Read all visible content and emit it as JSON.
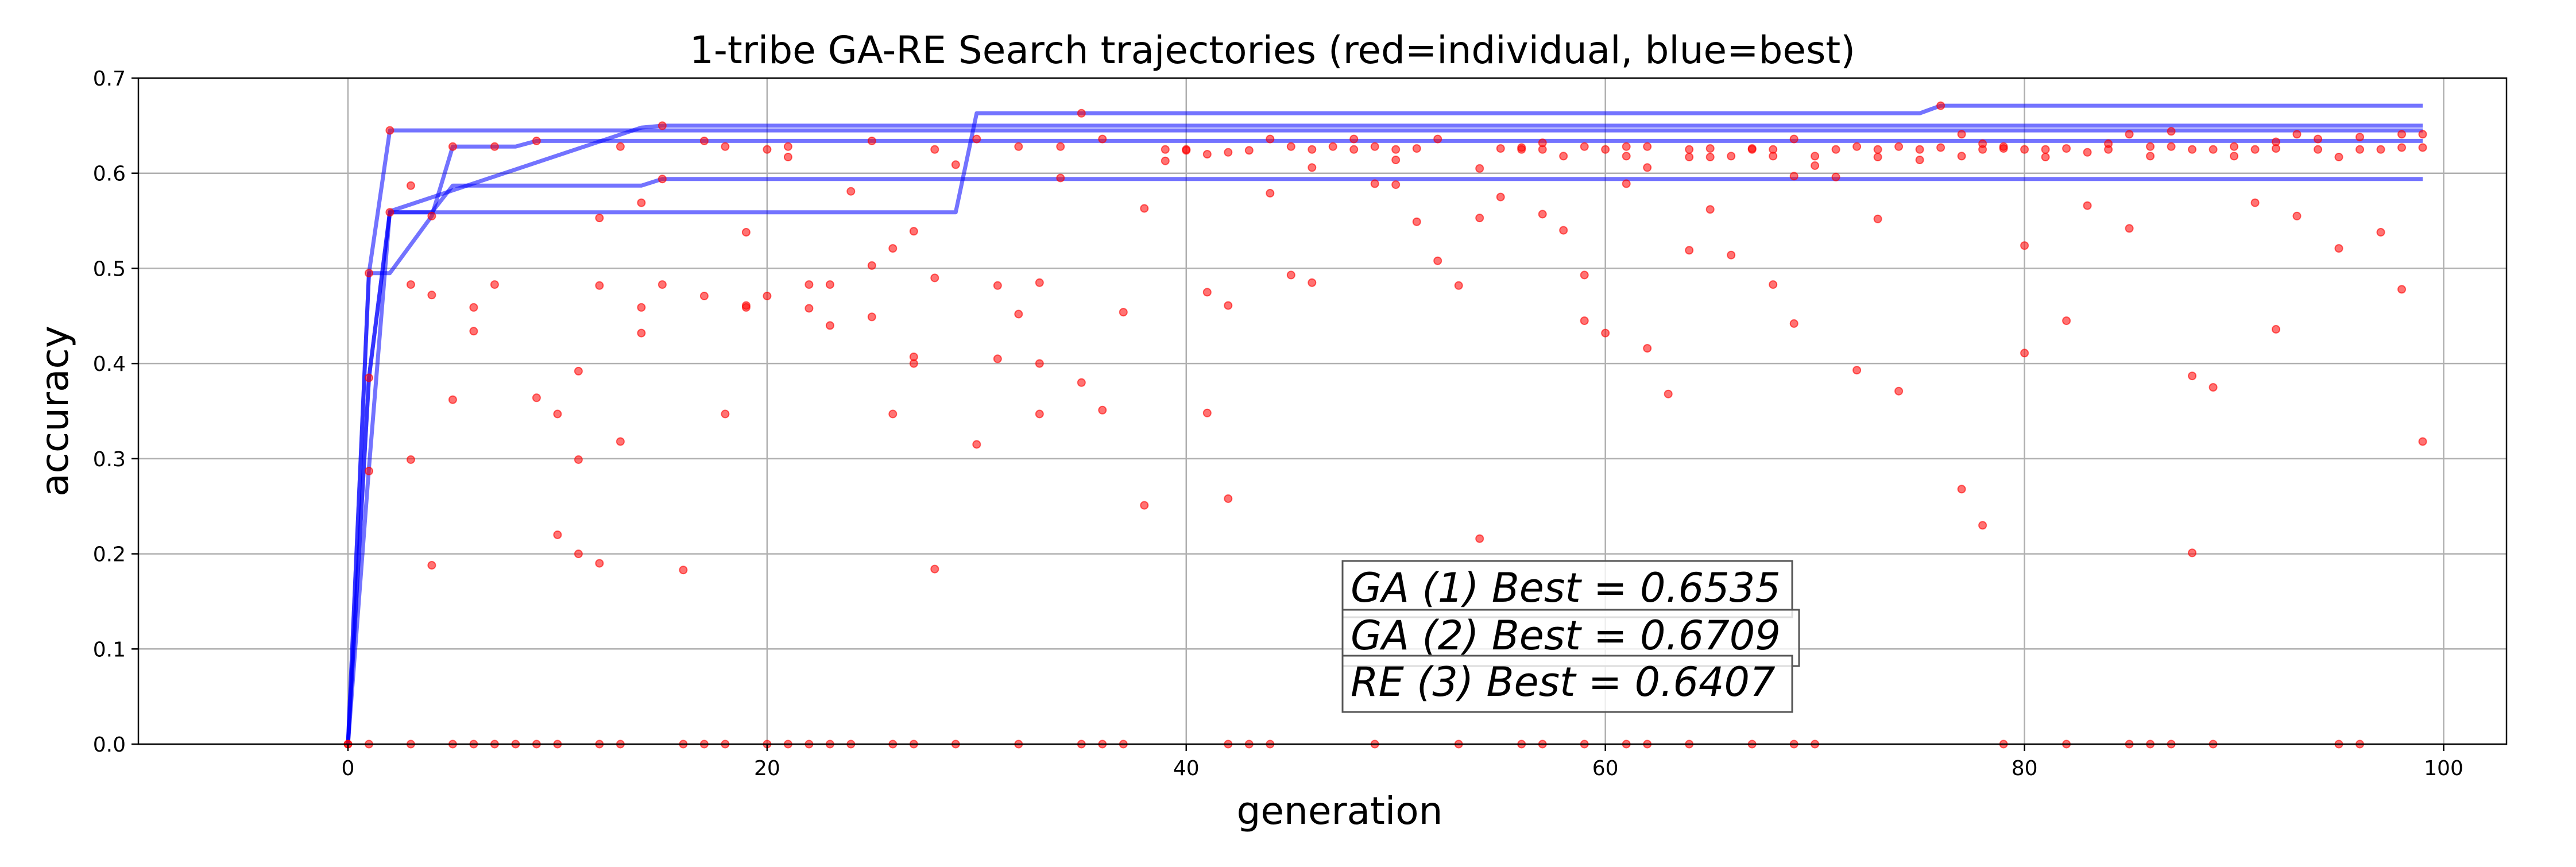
{
  "chart_data": {
    "type": "scatter",
    "title": "1-tribe GA-RE Search trajectories (red=individual, blue=best)",
    "xlabel": "generation",
    "ylabel": "accuracy",
    "xlim": [
      -10,
      103
    ],
    "ylim": [
      0,
      0.7
    ],
    "xticks": [
      0,
      20,
      40,
      60,
      80,
      100
    ],
    "yticks": [
      0.0,
      0.1,
      0.2,
      0.3,
      0.4,
      0.5,
      0.6,
      0.7
    ],
    "grid": true,
    "colors": {
      "individual": "#ff0000",
      "best": "#0000ff"
    },
    "annotations": [
      "GA (1) Best = 0.6535",
      "GA (2) Best = 0.6709",
      "RE (3) Best = 0.6407"
    ],
    "best_trajectories": [
      {
        "x": [
          0,
          1,
          2,
          99
        ],
        "y": [
          0.0,
          0.495,
          0.645,
          0.645
        ]
      },
      {
        "x": [
          0,
          1,
          2,
          29,
          30,
          75,
          76,
          99
        ],
        "y": [
          0.0,
          0.385,
          0.559,
          0.559,
          0.663,
          0.663,
          0.671,
          0.671
        ]
      },
      {
        "x": [
          0,
          1,
          2,
          4,
          5,
          8,
          9,
          99
        ],
        "y": [
          0.0,
          0.495,
          0.495,
          0.555,
          0.628,
          0.628,
          0.634,
          0.634
        ]
      },
      {
        "x": [
          0,
          1,
          2,
          3,
          4,
          5,
          14,
          15,
          99
        ],
        "y": [
          0.0,
          0.385,
          0.559,
          0.559,
          0.559,
          0.587,
          0.587,
          0.594,
          0.594
        ]
      },
      {
        "x": [
          0,
          1,
          2,
          14,
          15,
          30,
          99
        ],
        "y": [
          0.0,
          0.29,
          0.56,
          0.648,
          0.65,
          0.65,
          0.65
        ]
      }
    ],
    "individuals": [
      [
        0,
        0
      ],
      [
        1,
        0.495
      ],
      [
        1,
        0.385
      ],
      [
        1,
        0.287
      ],
      [
        2,
        0.645
      ],
      [
        2,
        0.559
      ],
      [
        3,
        0.587
      ],
      [
        3,
        0.483
      ],
      [
        3,
        0.299
      ],
      [
        4,
        0.555
      ],
      [
        4,
        0.472
      ],
      [
        4,
        0.188
      ],
      [
        5,
        0.628
      ],
      [
        5,
        0.362
      ],
      [
        6,
        0.459
      ],
      [
        6,
        0.434
      ],
      [
        7,
        0.628
      ],
      [
        7,
        0.483
      ],
      [
        9,
        0.634
      ],
      [
        9,
        0.364
      ],
      [
        10,
        0.347
      ],
      [
        10,
        0.22
      ],
      [
        11,
        0.392
      ],
      [
        11,
        0.299
      ],
      [
        11,
        0.2
      ],
      [
        12,
        0.553
      ],
      [
        12,
        0.482
      ],
      [
        12,
        0.19
      ],
      [
        13,
        0.628
      ],
      [
        13,
        0.318
      ],
      [
        14,
        0.569
      ],
      [
        14,
        0.459
      ],
      [
        14,
        0.432
      ],
      [
        15,
        0.65
      ],
      [
        15,
        0.594
      ],
      [
        15,
        0.483
      ],
      [
        16,
        0.183
      ],
      [
        17,
        0.634
      ],
      [
        17,
        0.471
      ],
      [
        18,
        0.628
      ],
      [
        18,
        0.347
      ],
      [
        19,
        0.538
      ],
      [
        19,
        0.461
      ],
      [
        19,
        0.459
      ],
      [
        20,
        0.625
      ],
      [
        20,
        0.471
      ],
      [
        21,
        0.628
      ],
      [
        21,
        0.617
      ],
      [
        22,
        0.483
      ],
      [
        22,
        0.458
      ],
      [
        23,
        0.483
      ],
      [
        23,
        0.44
      ],
      [
        24,
        0.581
      ],
      [
        25,
        0.634
      ],
      [
        25,
        0.503
      ],
      [
        25,
        0.449
      ],
      [
        26,
        0.521
      ],
      [
        26,
        0.347
      ],
      [
        27,
        0.539
      ],
      [
        27,
        0.407
      ],
      [
        27,
        0.4
      ],
      [
        28,
        0.625
      ],
      [
        28,
        0.49
      ],
      [
        28,
        0.184
      ],
      [
        29,
        0.609
      ],
      [
        30,
        0.636
      ],
      [
        30,
        0.315
      ],
      [
        31,
        0.482
      ],
      [
        31,
        0.405
      ],
      [
        32,
        0.628
      ],
      [
        32,
        0.452
      ],
      [
        33,
        0.485
      ],
      [
        33,
        0.4
      ],
      [
        33,
        0.347
      ],
      [
        34,
        0.628
      ],
      [
        34,
        0.595
      ],
      [
        35,
        0.663
      ],
      [
        35,
        0.38
      ],
      [
        36,
        0.636
      ],
      [
        36,
        0.351
      ],
      [
        37,
        0.454
      ],
      [
        38,
        0.563
      ],
      [
        38,
        0.251
      ],
      [
        39,
        0.625
      ],
      [
        39,
        0.613
      ],
      [
        40,
        0.625
      ],
      [
        40,
        0.624
      ],
      [
        41,
        0.62
      ],
      [
        41,
        0.475
      ],
      [
        41,
        0.348
      ],
      [
        42,
        0.622
      ],
      [
        42,
        0.461
      ],
      [
        42,
        0.258
      ],
      [
        43,
        0.624
      ],
      [
        44,
        0.636
      ],
      [
        44,
        0.579
      ],
      [
        45,
        0.628
      ],
      [
        45,
        0.493
      ],
      [
        46,
        0.625
      ],
      [
        46,
        0.606
      ],
      [
        46,
        0.485
      ],
      [
        47,
        0.628
      ],
      [
        48,
        0.636
      ],
      [
        48,
        0.625
      ],
      [
        49,
        0.628
      ],
      [
        49,
        0.589
      ],
      [
        50,
        0.625
      ],
      [
        50,
        0.614
      ],
      [
        50,
        0.588
      ],
      [
        51,
        0.626
      ],
      [
        51,
        0.549
      ],
      [
        52,
        0.636
      ],
      [
        52,
        0.508
      ],
      [
        53,
        0.482
      ],
      [
        54,
        0.605
      ],
      [
        54,
        0.553
      ],
      [
        54,
        0.216
      ],
      [
        55,
        0.626
      ],
      [
        55,
        0.575
      ],
      [
        56,
        0.625
      ],
      [
        56,
        0.627
      ],
      [
        57,
        0.632
      ],
      [
        57,
        0.625
      ],
      [
        57,
        0.557
      ],
      [
        58,
        0.618
      ],
      [
        58,
        0.54
      ],
      [
        59,
        0.628
      ],
      [
        59,
        0.493
      ],
      [
        59,
        0.445
      ],
      [
        60,
        0.625
      ],
      [
        60,
        0.432
      ],
      [
        61,
        0.628
      ],
      [
        61,
        0.618
      ],
      [
        61,
        0.589
      ],
      [
        62,
        0.628
      ],
      [
        62,
        0.606
      ],
      [
        62,
        0.416
      ],
      [
        63,
        0.368
      ],
      [
        64,
        0.625
      ],
      [
        64,
        0.617
      ],
      [
        64,
        0.519
      ],
      [
        65,
        0.626
      ],
      [
        65,
        0.617
      ],
      [
        65,
        0.562
      ],
      [
        66,
        0.618
      ],
      [
        66,
        0.514
      ],
      [
        67,
        0.625
      ],
      [
        67,
        0.626
      ],
      [
        68,
        0.625
      ],
      [
        68,
        0.618
      ],
      [
        68,
        0.483
      ],
      [
        69,
        0.636
      ],
      [
        69,
        0.597
      ],
      [
        69,
        0.442
      ],
      [
        70,
        0.618
      ],
      [
        70,
        0.608
      ],
      [
        71,
        0.625
      ],
      [
        71,
        0.596
      ],
      [
        72,
        0.628
      ],
      [
        72,
        0.393
      ],
      [
        73,
        0.625
      ],
      [
        73,
        0.617
      ],
      [
        73,
        0.552
      ],
      [
        74,
        0.628
      ],
      [
        74,
        0.371
      ],
      [
        75,
        0.625
      ],
      [
        75,
        0.614
      ],
      [
        76,
        0.671
      ],
      [
        76,
        0.627
      ],
      [
        77,
        0.641
      ],
      [
        77,
        0.618
      ],
      [
        77,
        0.268
      ],
      [
        78,
        0.631
      ],
      [
        78,
        0.625
      ],
      [
        78,
        0.23
      ],
      [
        79,
        0.628
      ],
      [
        79,
        0.626
      ],
      [
        80,
        0.625
      ],
      [
        80,
        0.524
      ],
      [
        80,
        0.411
      ],
      [
        81,
        0.625
      ],
      [
        81,
        0.617
      ],
      [
        82,
        0.626
      ],
      [
        82,
        0.445
      ],
      [
        83,
        0.622
      ],
      [
        83,
        0.566
      ],
      [
        84,
        0.631
      ],
      [
        84,
        0.625
      ],
      [
        85,
        0.641
      ],
      [
        85,
        0.542
      ],
      [
        86,
        0.628
      ],
      [
        86,
        0.618
      ],
      [
        87,
        0.644
      ],
      [
        87,
        0.628
      ],
      [
        88,
        0.625
      ],
      [
        88,
        0.387
      ],
      [
        88,
        0.201
      ],
      [
        89,
        0.625
      ],
      [
        89,
        0.375
      ],
      [
        90,
        0.628
      ],
      [
        90,
        0.618
      ],
      [
        91,
        0.625
      ],
      [
        91,
        0.569
      ],
      [
        92,
        0.633
      ],
      [
        92,
        0.626
      ],
      [
        92,
        0.436
      ],
      [
        93,
        0.641
      ],
      [
        93,
        0.555
      ],
      [
        94,
        0.636
      ],
      [
        94,
        0.625
      ],
      [
        95,
        0.617
      ],
      [
        95,
        0.521
      ],
      [
        96,
        0.638
      ],
      [
        96,
        0.625
      ],
      [
        97,
        0.625
      ],
      [
        97,
        0.538
      ],
      [
        98,
        0.641
      ],
      [
        98,
        0.627
      ],
      [
        98,
        0.478
      ],
      [
        99,
        0.641
      ],
      [
        99,
        0.627
      ],
      [
        99,
        0.318
      ],
      [
        0,
        0
      ],
      [
        1,
        0
      ],
      [
        3,
        0
      ],
      [
        5,
        0
      ],
      [
        6,
        0
      ],
      [
        7,
        0
      ],
      [
        8,
        0
      ],
      [
        9,
        0
      ],
      [
        10,
        0
      ],
      [
        12,
        0
      ],
      [
        13,
        0
      ],
      [
        16,
        0
      ],
      [
        17,
        0
      ],
      [
        18,
        0
      ],
      [
        20,
        0
      ],
      [
        21,
        0
      ],
      [
        22,
        0
      ],
      [
        23,
        0
      ],
      [
        24,
        0
      ],
      [
        26,
        0
      ],
      [
        27,
        0
      ],
      [
        29,
        0
      ],
      [
        32,
        0
      ],
      [
        35,
        0
      ],
      [
        36,
        0
      ],
      [
        37,
        0
      ],
      [
        42,
        0
      ],
      [
        43,
        0
      ],
      [
        44,
        0
      ],
      [
        49,
        0
      ],
      [
        53,
        0
      ],
      [
        56,
        0
      ],
      [
        57,
        0
      ],
      [
        59,
        0
      ],
      [
        61,
        0
      ],
      [
        62,
        0
      ],
      [
        64,
        0
      ],
      [
        67,
        0
      ],
      [
        69,
        0
      ],
      [
        70,
        0
      ],
      [
        79,
        0
      ],
      [
        82,
        0
      ],
      [
        85,
        0
      ],
      [
        86,
        0
      ],
      [
        87,
        0
      ],
      [
        89,
        0
      ],
      [
        95,
        0
      ],
      [
        96,
        0
      ]
    ]
  }
}
